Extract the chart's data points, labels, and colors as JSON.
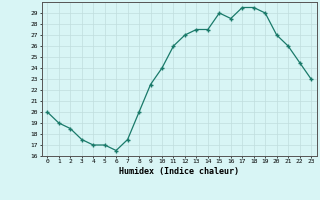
{
  "x": [
    0,
    1,
    2,
    3,
    4,
    5,
    6,
    7,
    8,
    9,
    10,
    11,
    12,
    13,
    14,
    15,
    16,
    17,
    18,
    19,
    20,
    21,
    22,
    23
  ],
  "y": [
    20,
    19,
    18.5,
    17.5,
    17,
    17,
    16.5,
    17.5,
    20,
    22.5,
    24,
    26,
    27,
    27.5,
    27.5,
    29,
    28.5,
    29.5,
    29.5,
    29,
    27,
    26,
    24.5,
    23
  ],
  "line_color": "#1a7a6a",
  "marker_color": "#1a7a6a",
  "bg_color": "#d8f5f5",
  "grid_color": "#c0dede",
  "xlabel": "Humidex (Indice chaleur)",
  "ylim": [
    16,
    30
  ],
  "yticks": [
    16,
    17,
    18,
    19,
    20,
    21,
    22,
    23,
    24,
    25,
    26,
    27,
    28,
    29
  ],
  "xticks": [
    0,
    1,
    2,
    3,
    4,
    5,
    6,
    7,
    8,
    9,
    10,
    11,
    12,
    13,
    14,
    15,
    16,
    17,
    18,
    19,
    20,
    21,
    22,
    23
  ],
  "xlim": [
    -0.5,
    23.5
  ]
}
